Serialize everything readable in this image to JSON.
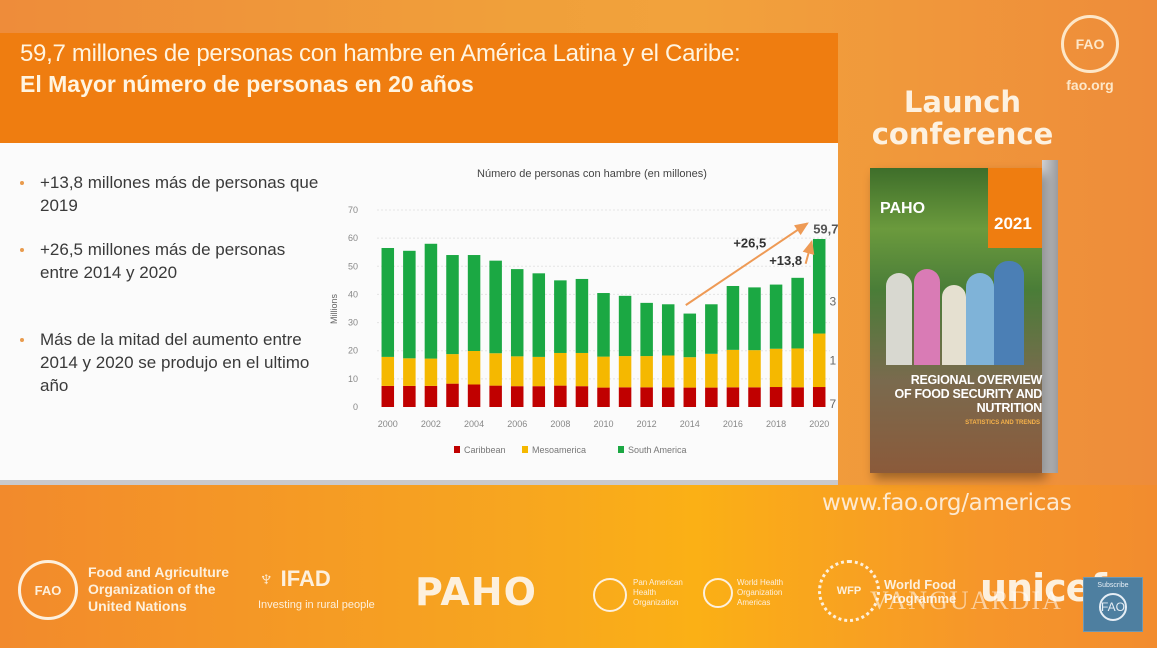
{
  "slide": {
    "title_line1": "59,7 millones de personas con hambre en América Latina y el Caribe:",
    "title_line2": "El Mayor número de personas en 20 años",
    "bullets": [
      "+13,8 millones más de personas que 2019",
      "+26,5 millones más de personas entre 2014 y 2020",
      "Más de la mitad del aumento entre 2014 y 2020 se produjo en el ultimo año"
    ]
  },
  "chart_data": {
    "type": "bar",
    "stacked": true,
    "title": "Número de personas con hambre (en millones)",
    "xlabel": "",
    "ylabel": "Millions",
    "ylim": [
      0,
      70
    ],
    "yticks": [
      0,
      10,
      20,
      30,
      40,
      50,
      60,
      70
    ],
    "grid": true,
    "categories": [
      "2000",
      "2001",
      "2002",
      "2003",
      "2004",
      "2005",
      "2006",
      "2007",
      "2008",
      "2009",
      "2010",
      "2011",
      "2012",
      "2013",
      "2014",
      "2015",
      "2016",
      "2017",
      "2018",
      "2019",
      "2020"
    ],
    "xtick_labels": [
      "2000",
      "2002",
      "2004",
      "2006",
      "2008",
      "2010",
      "2012",
      "2014",
      "2016",
      "2018",
      "2020"
    ],
    "series": [
      {
        "name": "Caribbean",
        "color": "#c00000",
        "values": [
          7.5,
          7.5,
          7.5,
          8.3,
          8.0,
          7.6,
          7.4,
          7.4,
          7.6,
          7.4,
          6.9,
          7.0,
          7.0,
          7.0,
          6.9,
          6.9,
          7.0,
          7.0,
          7.1,
          7.0,
          7.1
        ]
      },
      {
        "name": "Mesoamerica",
        "color": "#f5b800",
        "values": [
          10.3,
          9.8,
          9.7,
          10.5,
          11.9,
          11.5,
          10.6,
          10.4,
          11.6,
          11.8,
          11.0,
          11.1,
          11.1,
          11.3,
          10.8,
          12.0,
          13.3,
          13.2,
          13.6,
          13.8,
          19.0
        ]
      },
      {
        "name": "South America",
        "color": "#1ba843",
        "values": [
          38.7,
          38.2,
          40.8,
          35.2,
          34.1,
          32.9,
          31.0,
          29.7,
          25.8,
          26.3,
          22.6,
          21.4,
          18.9,
          18.2,
          15.5,
          17.6,
          22.7,
          22.3,
          22.8,
          25.1,
          33.6
        ]
      }
    ],
    "annotations": [
      {
        "text": "+26,5",
        "from": "2014",
        "to": "2020"
      },
      {
        "text": "+13,8",
        "from": "2019",
        "to": "2020"
      },
      {
        "text": "59,7",
        "at": "2020",
        "kind": "total"
      },
      {
        "text": "3",
        "at": "2020",
        "kind": "truncated-segment-label-south-america"
      },
      {
        "text": "1",
        "at": "2020",
        "kind": "truncated-segment-label-mesoamerica"
      },
      {
        "text": "7",
        "at": "2020",
        "kind": "truncated-segment-label-caribbean"
      }
    ],
    "legend": {
      "placement": "bottom",
      "entries": [
        "Caribbean",
        "Mesoamerica",
        "South America"
      ]
    },
    "annotation_color": "#ee9a55"
  },
  "right_panel": {
    "fao_emblem": "FAO",
    "fao_site": "fao.org",
    "launch_line1": "Launch",
    "launch_line2": "conference",
    "book": {
      "brand": "PAHO",
      "year": "2021",
      "title": "REGIONAL OVERVIEW OF FOOD SECURITY AND NUTRITION",
      "subtitle": "STATISTICS AND TRENDS"
    },
    "url": "www.fao.org/americas"
  },
  "footer": {
    "fao_emblem": "FAO",
    "fao_name": "Food and Agriculture Organization of the United Nations",
    "ifad_mark": "IFAD",
    "ifad_tagline": "Investing in rural people",
    "paho_mark": "PAHO",
    "paho_name": "Pan American Health Organization",
    "who_name": "World Health Organization Americas",
    "wfp_emblem": "WFP",
    "wfp_name": "World Food Programme",
    "unicef_mark": "unicef",
    "watermark": "VANGUARDIA",
    "subscribe_label": "Subscribe",
    "subscribe_emblem": "FAO"
  },
  "colors": {
    "header_orange": "#ef7d10",
    "background_orange": "#f0a03a",
    "caribbean": "#c00000",
    "mesoamerica": "#f5b800",
    "south_america": "#1ba843"
  }
}
